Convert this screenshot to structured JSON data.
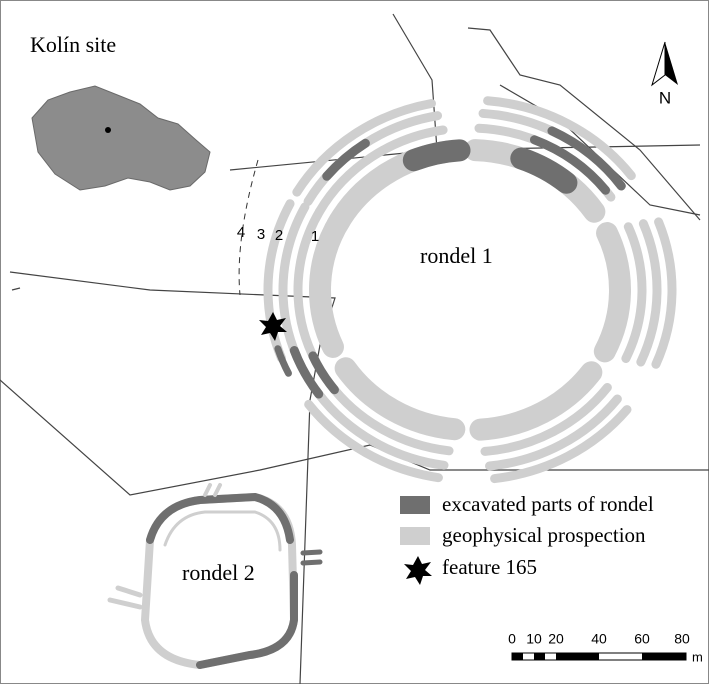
{
  "title": "Kolín site",
  "north": "N",
  "rondels": [
    "rondel 1",
    "rondel 2"
  ],
  "ditch_numbers": [
    "4",
    "3",
    "2",
    "1"
  ],
  "legend": [
    "excavated parts of rondel",
    "geophysical prospection",
    "feature 165"
  ],
  "scale": {
    "labels": [
      "0",
      "10",
      "20",
      "40",
      "60",
      "80"
    ],
    "unit": "m"
  }
}
